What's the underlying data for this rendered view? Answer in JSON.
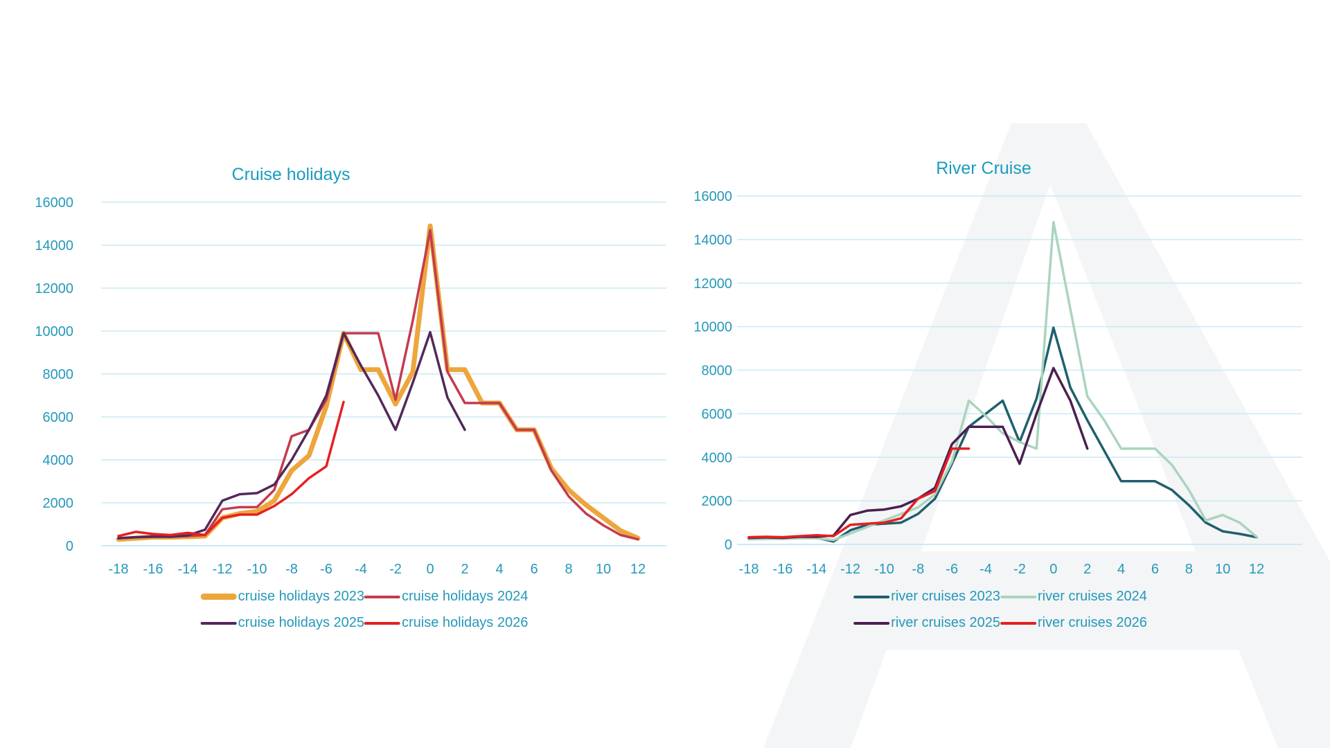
{
  "page": {
    "background_color": "#ffffff",
    "watermark": {
      "description": "large light-gray letter-A logo behind right chart",
      "color": "#F3F5F6"
    },
    "text_color": "#2598BA",
    "title_color": "#1A9BBE",
    "gridline_color": "#C9EAF4"
  },
  "chart_data": [
    {
      "type": "line",
      "title": "Cruise holidays",
      "xlabel": "",
      "ylabel": "",
      "grid": true,
      "legend_position": "bottom",
      "xlim": [
        -18,
        12
      ],
      "ylim": [
        0,
        16000
      ],
      "x_ticks": [
        -18,
        -16,
        -14,
        -12,
        -10,
        -8,
        -6,
        -4,
        -2,
        0,
        2,
        4,
        6,
        8,
        10,
        12
      ],
      "y_ticks": [
        0,
        2000,
        4000,
        6000,
        8000,
        10000,
        12000,
        14000,
        16000
      ],
      "x": [
        -18,
        -17,
        -16,
        -15,
        -14,
        -13,
        -12,
        -11,
        -10,
        -9,
        -8,
        -7,
        -6,
        -5,
        -4,
        -3,
        -2,
        -1,
        0,
        1,
        2,
        3,
        4,
        5,
        6,
        7,
        8,
        9,
        10,
        11,
        12
      ],
      "series": [
        {
          "name": "cruise holidays 2023",
          "color": "#EDA63C",
          "line_width": 7,
          "values": [
            300,
            350,
            400,
            400,
            420,
            450,
            1300,
            1500,
            1600,
            2100,
            3500,
            4200,
            6500,
            9900,
            8200,
            8200,
            6600,
            8100,
            14900,
            8200,
            8200,
            6650,
            6650,
            5400,
            5400,
            3600,
            2600,
            1900,
            1300,
            700,
            350
          ]
        },
        {
          "name": "cruise holidays 2024",
          "color": "#C43B4E",
          "line_width": 3.5,
          "values": [
            350,
            400,
            450,
            420,
            450,
            500,
            1700,
            1800,
            1800,
            2600,
            5100,
            5400,
            6800,
            9900,
            9900,
            9900,
            6800,
            10500,
            14700,
            8100,
            6650,
            6650,
            6650,
            5400,
            5400,
            3500,
            2300,
            1500,
            950,
            500,
            300
          ]
        },
        {
          "name": "cruise holidays 2025",
          "color": "#53285A",
          "line_width": 3.5,
          "values": [
            350,
            400,
            420,
            420,
            480,
            750,
            2100,
            2400,
            2450,
            2850,
            4000,
            5400,
            7000,
            9900,
            8400,
            7000,
            5400,
            7600,
            9950,
            6900,
            5400,
            null,
            null,
            null,
            null,
            null,
            null,
            null,
            null,
            null,
            null
          ]
        },
        {
          "name": "cruise holidays 2026",
          "color": "#E52020",
          "line_width": 3.5,
          "values": [
            450,
            650,
            550,
            500,
            600,
            500,
            1300,
            1450,
            1450,
            1850,
            2400,
            3150,
            3700,
            6700,
            null,
            null,
            null,
            null,
            null,
            null,
            null,
            null,
            null,
            null,
            null,
            null,
            null,
            null,
            null,
            null,
            null
          ]
        }
      ]
    },
    {
      "type": "line",
      "title": "River Cruise",
      "xlabel": "",
      "ylabel": "",
      "grid": true,
      "legend_position": "bottom",
      "xlim": [
        -18,
        12
      ],
      "ylim": [
        0,
        16000
      ],
      "x_ticks": [
        -18,
        -16,
        -14,
        -12,
        -10,
        -8,
        -6,
        -4,
        -2,
        0,
        2,
        4,
        6,
        8,
        10,
        12
      ],
      "y_ticks": [
        0,
        2000,
        4000,
        6000,
        8000,
        10000,
        12000,
        14000,
        16000
      ],
      "x": [
        -18,
        -17,
        -16,
        -15,
        -14,
        -13,
        -12,
        -11,
        -10,
        -9,
        -8,
        -7,
        -6,
        -5,
        -4,
        -3,
        -2,
        -1,
        0,
        1,
        2,
        3,
        4,
        5,
        6,
        7,
        8,
        9,
        10,
        11,
        12
      ],
      "series": [
        {
          "name": "river cruises 2023",
          "color": "#205F6E",
          "line_width": 3.5,
          "values": [
            250,
            280,
            260,
            300,
            300,
            130,
            650,
            900,
            950,
            1000,
            1400,
            2100,
            3700,
            5400,
            6000,
            6600,
            4700,
            6700,
            9950,
            7200,
            5700,
            4300,
            2900,
            2900,
            2900,
            2500,
            1800,
            1000,
            600,
            480,
            330
          ]
        },
        {
          "name": "river cruises 2024",
          "color": "#ABD4BE",
          "line_width": 3.5,
          "values": [
            230,
            250,
            250,
            280,
            280,
            200,
            500,
            800,
            1100,
            1400,
            1700,
            2300,
            3800,
            6600,
            5900,
            5100,
            4700,
            4400,
            14800,
            10800,
            6800,
            5700,
            4400,
            4400,
            4400,
            3650,
            2500,
            1100,
            1350,
            1000,
            350
          ]
        },
        {
          "name": "river cruises 2025",
          "color": "#4B1F51",
          "line_width": 3.5,
          "values": [
            300,
            320,
            300,
            350,
            350,
            400,
            1350,
            1550,
            1600,
            1750,
            2100,
            2600,
            4600,
            5400,
            5400,
            5400,
            3700,
            6000,
            8100,
            6600,
            4400,
            null,
            null,
            null,
            null,
            null,
            null,
            null,
            null,
            null,
            null
          ]
        },
        {
          "name": "river cruises 2026",
          "color": "#E52020",
          "line_width": 3.5,
          "values": [
            330,
            350,
            330,
            380,
            420,
            380,
            900,
            950,
            1000,
            1200,
            2100,
            2450,
            4400,
            4400,
            null,
            null,
            null,
            null,
            null,
            null,
            null,
            null,
            null,
            null,
            null,
            null,
            null,
            null,
            null,
            null,
            null
          ]
        }
      ]
    }
  ]
}
